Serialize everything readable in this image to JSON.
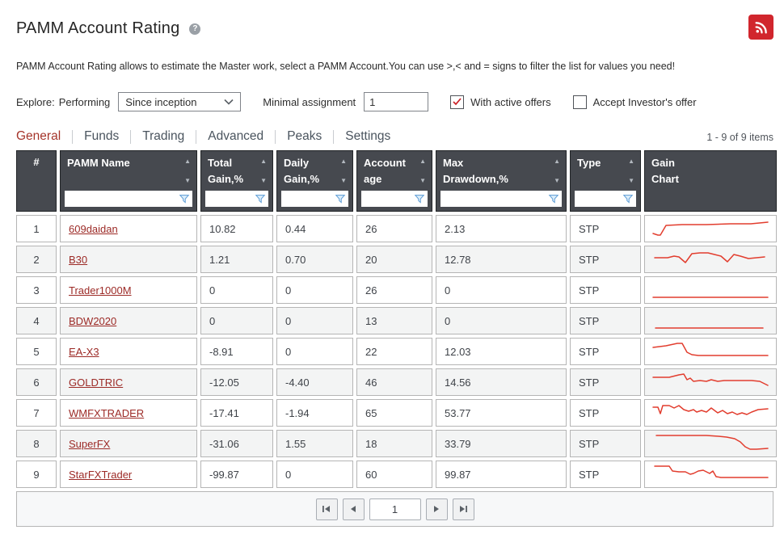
{
  "title": "PAMM Account Rating",
  "description": "PAMM Account Rating allows to estimate the Master work, select a PAMM Account.You can use >,< and = signs to filter the list for values you need!",
  "filters": {
    "explore_label": "Explore:",
    "explore_value": "Performing",
    "period_selected": "Since inception",
    "minimal_assignment_label": "Minimal assignment",
    "minimal_assignment_value": "1",
    "with_active_offers_label": "With active offers",
    "with_active_offers_checked": true,
    "accept_investor_label": "Accept Investor's offer",
    "accept_investor_checked": false
  },
  "tabs": [
    {
      "label": "General",
      "active": true
    },
    {
      "label": "Funds",
      "active": false
    },
    {
      "label": "Trading",
      "active": false
    },
    {
      "label": "Advanced",
      "active": false
    },
    {
      "label": "Peaks",
      "active": false
    },
    {
      "label": "Settings",
      "active": false
    }
  ],
  "items_count": "1 - 9 of 9 items",
  "table": {
    "columns": [
      {
        "lines": [
          "#"
        ],
        "sortable": false,
        "filterable": false
      },
      {
        "lines": [
          "PAMM Name"
        ],
        "sortable": true,
        "filterable": true
      },
      {
        "lines": [
          "Total",
          "Gain,%"
        ],
        "sortable": true,
        "filterable": true
      },
      {
        "lines": [
          "Daily",
          "Gain,%"
        ],
        "sortable": true,
        "filterable": true
      },
      {
        "lines": [
          "Account",
          "age"
        ],
        "sortable": true,
        "filterable": true
      },
      {
        "lines": [
          "Max",
          "Drawdown,%"
        ],
        "sortable": true,
        "filterable": true
      },
      {
        "lines": [
          "Type"
        ],
        "sortable": true,
        "filterable": true
      },
      {
        "lines": [
          "Gain",
          "Chart"
        ],
        "sortable": false,
        "filterable": false
      }
    ],
    "rows": [
      {
        "num": "1",
        "name": "609daidan",
        "total_gain": "10.82",
        "daily_gain": "0.44",
        "account_age": "26",
        "max_drawdown": "2.13",
        "type": "STP",
        "spark": [
          [
            4,
            21
          ],
          [
            10,
            23
          ],
          [
            13,
            23
          ],
          [
            20,
            11
          ],
          [
            40,
            10
          ],
          [
            70,
            10
          ],
          [
            100,
            9
          ],
          [
            125,
            9
          ],
          [
            146,
            7
          ]
        ]
      },
      {
        "num": "2",
        "name": "B30",
        "total_gain": "1.21",
        "daily_gain": "0.70",
        "account_age": "20",
        "max_drawdown": "12.78",
        "type": "STP",
        "spark": [
          [
            6,
            13
          ],
          [
            22,
            13
          ],
          [
            30,
            11
          ],
          [
            36,
            12
          ],
          [
            44,
            19
          ],
          [
            52,
            8
          ],
          [
            62,
            7
          ],
          [
            72,
            7
          ],
          [
            80,
            9
          ],
          [
            88,
            11
          ],
          [
            96,
            18
          ],
          [
            104,
            9
          ],
          [
            112,
            11
          ],
          [
            122,
            14
          ],
          [
            132,
            13
          ],
          [
            142,
            12
          ]
        ]
      },
      {
        "num": "3",
        "name": "Trader1000M",
        "total_gain": "0",
        "daily_gain": "0",
        "account_age": "26",
        "max_drawdown": "0",
        "type": "STP",
        "spark": [
          [
            4,
            24
          ],
          [
            146,
            24
          ]
        ]
      },
      {
        "num": "4",
        "name": "BDW2020",
        "total_gain": "0",
        "daily_gain": "0",
        "account_age": "13",
        "max_drawdown": "0",
        "type": "STP",
        "spark": [
          [
            7,
            24
          ],
          [
            140,
            24
          ]
        ]
      },
      {
        "num": "5",
        "name": "EA-X3",
        "total_gain": "-8.91",
        "daily_gain": "0",
        "account_age": "22",
        "max_drawdown": "12.03",
        "type": "STP",
        "spark": [
          [
            4,
            10
          ],
          [
            20,
            8
          ],
          [
            34,
            5
          ],
          [
            40,
            5
          ],
          [
            46,
            16
          ],
          [
            52,
            19
          ],
          [
            60,
            20
          ],
          [
            146,
            20
          ]
        ]
      },
      {
        "num": "6",
        "name": "GOLDTRIC",
        "total_gain": "-12.05",
        "daily_gain": "-4.40",
        "account_age": "46",
        "max_drawdown": "14.56",
        "type": "STP",
        "spark": [
          [
            4,
            9
          ],
          [
            24,
            9
          ],
          [
            36,
            6
          ],
          [
            42,
            5
          ],
          [
            46,
            12
          ],
          [
            50,
            10
          ],
          [
            54,
            14
          ],
          [
            62,
            13
          ],
          [
            70,
            14
          ],
          [
            76,
            12
          ],
          [
            84,
            14
          ],
          [
            92,
            13
          ],
          [
            110,
            13
          ],
          [
            126,
            13
          ],
          [
            136,
            14
          ],
          [
            146,
            19
          ]
        ]
      },
      {
        "num": "7",
        "name": "WMFXTRADER",
        "total_gain": "-17.41",
        "daily_gain": "-1.94",
        "account_age": "65",
        "max_drawdown": "53.77",
        "type": "STP",
        "spark": [
          [
            4,
            8
          ],
          [
            10,
            8
          ],
          [
            13,
            16
          ],
          [
            16,
            6
          ],
          [
            24,
            6
          ],
          [
            30,
            9
          ],
          [
            36,
            6
          ],
          [
            42,
            11
          ],
          [
            48,
            13
          ],
          [
            54,
            11
          ],
          [
            58,
            14
          ],
          [
            64,
            12
          ],
          [
            70,
            14
          ],
          [
            76,
            9
          ],
          [
            80,
            12
          ],
          [
            84,
            15
          ],
          [
            90,
            12
          ],
          [
            96,
            16
          ],
          [
            102,
            14
          ],
          [
            108,
            17
          ],
          [
            114,
            15
          ],
          [
            120,
            17
          ],
          [
            126,
            14
          ],
          [
            134,
            11
          ],
          [
            146,
            10
          ]
        ]
      },
      {
        "num": "8",
        "name": "SuperFX",
        "total_gain": "-31.06",
        "daily_gain": "1.55",
        "account_age": "18",
        "max_drawdown": "33.79",
        "type": "STP",
        "spark": [
          [
            8,
            5
          ],
          [
            70,
            5
          ],
          [
            85,
            6
          ],
          [
            95,
            7
          ],
          [
            105,
            9
          ],
          [
            112,
            13
          ],
          [
            118,
            19
          ],
          [
            124,
            22
          ],
          [
            132,
            22
          ],
          [
            146,
            21
          ]
        ]
      },
      {
        "num": "9",
        "name": "StarFXTrader",
        "total_gain": "-99.87",
        "daily_gain": "0",
        "account_age": "60",
        "max_drawdown": "99.87",
        "type": "STP",
        "spark": [
          [
            6,
            5
          ],
          [
            24,
            5
          ],
          [
            28,
            11
          ],
          [
            36,
            12
          ],
          [
            44,
            12
          ],
          [
            50,
            15
          ],
          [
            54,
            14
          ],
          [
            60,
            11
          ],
          [
            66,
            10
          ],
          [
            70,
            12
          ],
          [
            74,
            14
          ],
          [
            78,
            11
          ],
          [
            82,
            18
          ],
          [
            88,
            19
          ],
          [
            146,
            19
          ]
        ]
      }
    ]
  },
  "pagination": {
    "page": "1"
  },
  "colors": {
    "accent_red": "#d1262d",
    "spark_line": "#e23d2e",
    "header_bg": "#46494f",
    "link": "#9c2a26",
    "active_tab": "#a5352b",
    "check_red": "#cb2026",
    "filter_icon_blue": "#5b9bd5"
  }
}
